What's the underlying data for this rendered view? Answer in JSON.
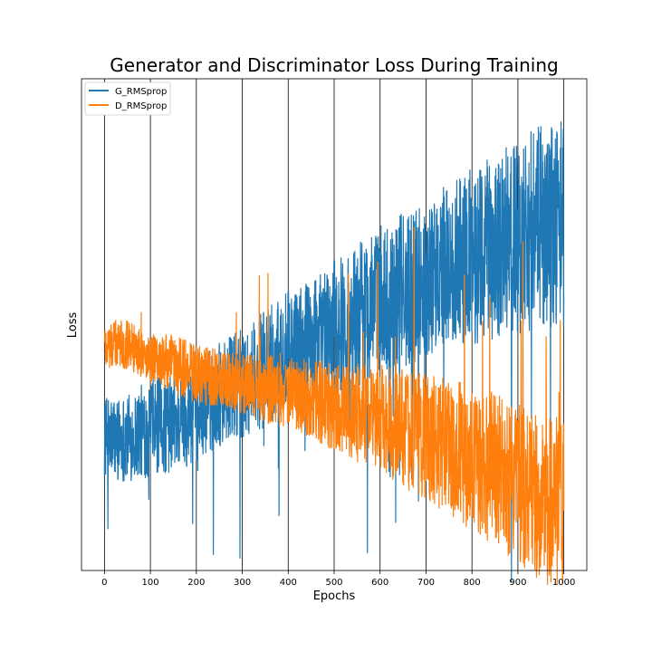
{
  "chart_data": {
    "type": "line",
    "title": "Generator and Discriminator Loss During Training",
    "xlabel": "Epochs",
    "ylabel": "Loss",
    "xlim": [
      -50,
      1050
    ],
    "ylim": [
      0,
      1
    ],
    "x_ticks": [
      0,
      100,
      200,
      300,
      400,
      500,
      600,
      700,
      800,
      900,
      1000
    ],
    "y_ticks_shown": false,
    "grid": "vertical lines only",
    "legend_position": "top-left",
    "series": [
      {
        "name": "G_RMSprop",
        "color": "#1f77b4",
        "x": [
          0,
          50,
          100,
          150,
          200,
          250,
          300,
          350,
          400,
          450,
          500,
          550,
          600,
          650,
          700,
          750,
          800,
          850,
          900,
          950,
          1000
        ],
        "y": [
          0.27,
          0.27,
          0.29,
          0.3,
          0.32,
          0.36,
          0.38,
          0.41,
          0.44,
          0.46,
          0.49,
          0.52,
          0.55,
          0.57,
          0.59,
          0.62,
          0.64,
          0.66,
          0.68,
          0.7,
          0.71
        ],
        "spread": [
          0.08,
          0.09,
          0.1,
          0.1,
          0.1,
          0.11,
          0.11,
          0.12,
          0.13,
          0.13,
          0.14,
          0.15,
          0.15,
          0.16,
          0.16,
          0.17,
          0.18,
          0.19,
          0.2,
          0.21,
          0.22
        ]
      },
      {
        "name": "D_RMSprop",
        "color": "#ff7f0e",
        "x": [
          0,
          50,
          100,
          150,
          200,
          250,
          300,
          350,
          400,
          450,
          500,
          550,
          600,
          650,
          700,
          750,
          800,
          850,
          900,
          950,
          1000
        ],
        "y": [
          0.46,
          0.46,
          0.43,
          0.42,
          0.4,
          0.39,
          0.38,
          0.37,
          0.36,
          0.35,
          0.33,
          0.32,
          0.31,
          0.29,
          0.27,
          0.25,
          0.23,
          0.2,
          0.18,
          0.15,
          0.13
        ],
        "spread": [
          0.05,
          0.05,
          0.05,
          0.06,
          0.06,
          0.06,
          0.06,
          0.07,
          0.07,
          0.08,
          0.09,
          0.1,
          0.11,
          0.12,
          0.13,
          0.14,
          0.15,
          0.16,
          0.17,
          0.17,
          0.18
        ]
      }
    ]
  }
}
